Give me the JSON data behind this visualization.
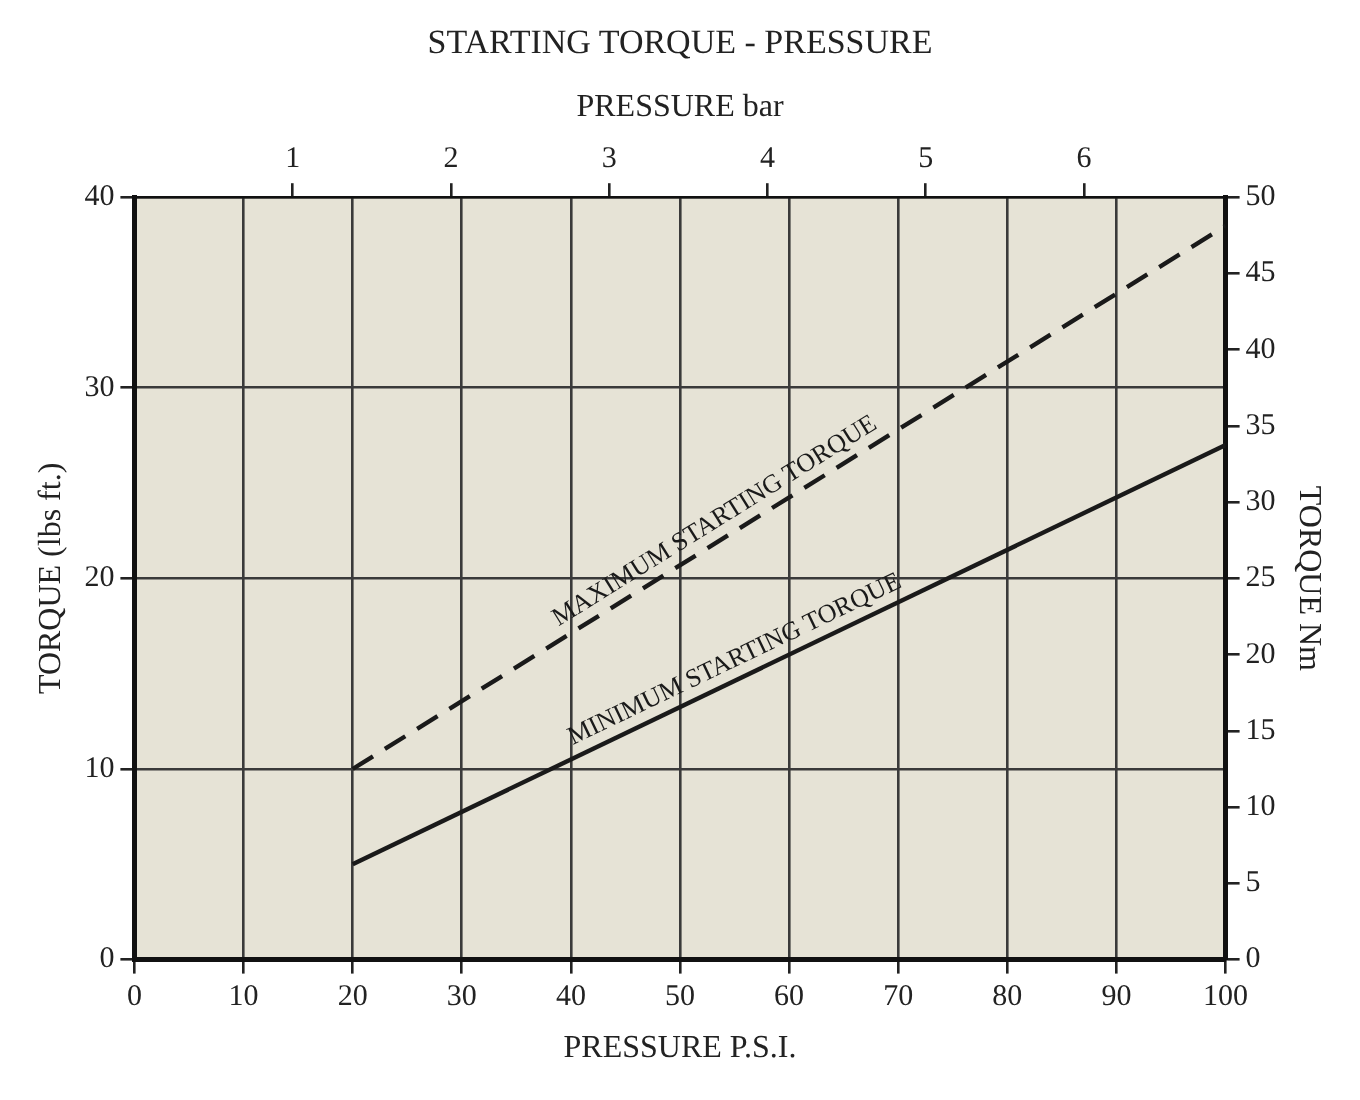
{
  "chart_data": {
    "type": "line",
    "title": "STARTING TORQUE - PRESSURE",
    "xlabel": "PRESSURE P.S.I.",
    "ylabel": "TORQUE (lbs ft.)",
    "y2label": "TORQUE Nm",
    "x2label": "PRESSURE bar",
    "x": [
      20,
      100
    ],
    "series": [
      {
        "name": "MAXIMUM STARTING TORQUE",
        "color": "#1a1a1a",
        "line_style": "dashed",
        "values": [
          10,
          38.5
        ]
      },
      {
        "name": "MINIMUM STARTING TORQUE",
        "color": "#1a1a1a",
        "line_style": "solid",
        "values": [
          5,
          27
        ]
      }
    ],
    "xlim": [
      0,
      100
    ],
    "xticks": [
      0,
      10,
      20,
      30,
      40,
      50,
      60,
      70,
      80,
      90,
      100
    ],
    "ylim": [
      0,
      40
    ],
    "yticks": [
      0,
      10,
      20,
      30,
      40
    ],
    "y2lim": [
      0,
      50
    ],
    "y2ticks": [
      0,
      5,
      10,
      15,
      20,
      25,
      30,
      35,
      40,
      45,
      50
    ],
    "x2lim": [
      0,
      6.895
    ],
    "x2ticks": [
      1,
      2,
      3,
      4,
      5,
      6
    ],
    "grid": true,
    "legend": false,
    "marker": "none"
  }
}
